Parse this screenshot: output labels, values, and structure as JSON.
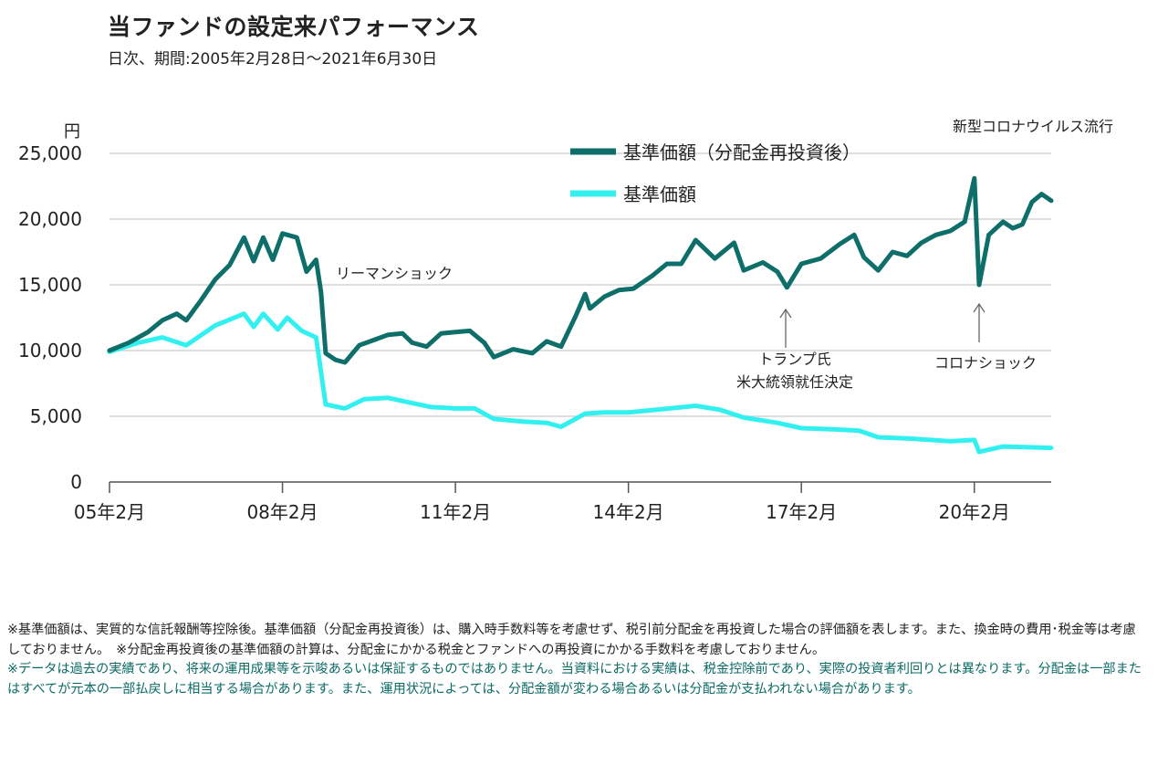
{
  "header": {
    "title": "当ファンドの設定来パフォーマンス",
    "subtitle": "日次、期間:2005年2月28日～2021年6月30日"
  },
  "chart_data": {
    "type": "line",
    "ylabel": "円",
    "ylim": [
      0,
      25000
    ],
    "yticks": [
      0,
      5000,
      10000,
      15000,
      20000,
      25000
    ],
    "ytick_labels": [
      "0",
      "5,000",
      "10,000",
      "15,000",
      "20,000",
      "25,000"
    ],
    "xlim": [
      "2005-02",
      "2021-06"
    ],
    "xticks": [
      "2005-02",
      "2008-02",
      "2011-02",
      "2014-02",
      "2017-02",
      "2020-02"
    ],
    "xtick_labels": [
      "05年2月",
      "08年2月",
      "11年2月",
      "14年2月",
      "17年2月",
      "20年2月"
    ],
    "grid": "horizontal",
    "legend_position": "top-right",
    "series": [
      {
        "name": "基準価額（分配金再投資後）",
        "color": "#0e6e6a",
        "points": [
          [
            "2005-02",
            10000
          ],
          [
            "2005-06",
            10600
          ],
          [
            "2005-10",
            11400
          ],
          [
            "2006-01",
            12300
          ],
          [
            "2006-04",
            12800
          ],
          [
            "2006-06",
            12300
          ],
          [
            "2006-09",
            13800
          ],
          [
            "2006-12",
            15400
          ],
          [
            "2007-03",
            16500
          ],
          [
            "2007-06",
            18600
          ],
          [
            "2007-08",
            16800
          ],
          [
            "2007-10",
            18600
          ],
          [
            "2007-12",
            16900
          ],
          [
            "2008-02",
            18900
          ],
          [
            "2008-05",
            18600
          ],
          [
            "2008-07",
            16000
          ],
          [
            "2008-09",
            16900
          ],
          [
            "2008-10",
            14500
          ],
          [
            "2008-11",
            9800
          ],
          [
            "2009-01",
            9300
          ],
          [
            "2009-03",
            9100
          ],
          [
            "2009-06",
            10400
          ],
          [
            "2009-09",
            10800
          ],
          [
            "2009-12",
            11200
          ],
          [
            "2010-03",
            11300
          ],
          [
            "2010-05",
            10600
          ],
          [
            "2010-08",
            10300
          ],
          [
            "2010-11",
            11300
          ],
          [
            "2011-02",
            11400
          ],
          [
            "2011-05",
            11500
          ],
          [
            "2011-08",
            10600
          ],
          [
            "2011-10",
            9500
          ],
          [
            "2012-02",
            10100
          ],
          [
            "2012-06",
            9800
          ],
          [
            "2012-09",
            10700
          ],
          [
            "2012-12",
            10300
          ],
          [
            "2013-03",
            12600
          ],
          [
            "2013-05",
            14300
          ],
          [
            "2013-06",
            13200
          ],
          [
            "2013-09",
            14100
          ],
          [
            "2013-12",
            14600
          ],
          [
            "2014-03",
            14700
          ],
          [
            "2014-07",
            15700
          ],
          [
            "2014-10",
            16600
          ],
          [
            "2015-01",
            16600
          ],
          [
            "2015-04",
            18400
          ],
          [
            "2015-08",
            17000
          ],
          [
            "2015-12",
            18200
          ],
          [
            "2016-02",
            16100
          ],
          [
            "2016-06",
            16700
          ],
          [
            "2016-09",
            16000
          ],
          [
            "2016-11",
            14800
          ],
          [
            "2017-02",
            16600
          ],
          [
            "2017-06",
            17000
          ],
          [
            "2017-10",
            18100
          ],
          [
            "2018-01",
            18800
          ],
          [
            "2018-03",
            17100
          ],
          [
            "2018-06",
            16100
          ],
          [
            "2018-09",
            17500
          ],
          [
            "2018-12",
            17200
          ],
          [
            "2019-03",
            18200
          ],
          [
            "2019-06",
            18800
          ],
          [
            "2019-09",
            19100
          ],
          [
            "2019-12",
            19800
          ],
          [
            "2020-02",
            23100
          ],
          [
            "2020-03",
            15000
          ],
          [
            "2020-05",
            18800
          ],
          [
            "2020-08",
            19800
          ],
          [
            "2020-10",
            19300
          ],
          [
            "2020-12",
            19600
          ],
          [
            "2021-02",
            21300
          ],
          [
            "2021-04",
            21900
          ],
          [
            "2021-06",
            21400
          ]
        ]
      },
      {
        "name": "基準価額",
        "color": "#33f0f0",
        "points": [
          [
            "2005-02",
            9900
          ],
          [
            "2005-08",
            10600
          ],
          [
            "2006-01",
            11000
          ],
          [
            "2006-06",
            10400
          ],
          [
            "2006-12",
            11900
          ],
          [
            "2007-06",
            12800
          ],
          [
            "2007-08",
            11800
          ],
          [
            "2007-10",
            12800
          ],
          [
            "2008-01",
            11600
          ],
          [
            "2008-03",
            12500
          ],
          [
            "2008-06",
            11500
          ],
          [
            "2008-09",
            11000
          ],
          [
            "2008-11",
            5900
          ],
          [
            "2009-03",
            5600
          ],
          [
            "2009-07",
            6300
          ],
          [
            "2009-12",
            6400
          ],
          [
            "2010-05",
            6000
          ],
          [
            "2010-09",
            5700
          ],
          [
            "2011-02",
            5600
          ],
          [
            "2011-06",
            5600
          ],
          [
            "2011-10",
            4800
          ],
          [
            "2012-04",
            4600
          ],
          [
            "2012-09",
            4500
          ],
          [
            "2012-12",
            4200
          ],
          [
            "2013-05",
            5200
          ],
          [
            "2013-09",
            5300
          ],
          [
            "2014-02",
            5300
          ],
          [
            "2014-08",
            5500
          ],
          [
            "2015-04",
            5800
          ],
          [
            "2015-09",
            5500
          ],
          [
            "2016-02",
            4900
          ],
          [
            "2016-09",
            4500
          ],
          [
            "2017-02",
            4100
          ],
          [
            "2017-09",
            4000
          ],
          [
            "2018-02",
            3900
          ],
          [
            "2018-06",
            3400
          ],
          [
            "2019-01",
            3300
          ],
          [
            "2019-09",
            3100
          ],
          [
            "2020-02",
            3200
          ],
          [
            "2020-03",
            2300
          ],
          [
            "2020-08",
            2700
          ],
          [
            "2021-06",
            2600
          ]
        ]
      }
    ],
    "annotations": [
      {
        "text": "リーマンショック",
        "arrow": false
      },
      {
        "text": "トランプ氏 米大統領就任決定",
        "lines": [
          "トランプ氏",
          "米大統領就任決定"
        ],
        "arrow": true
      },
      {
        "text": "コロナショック",
        "arrow": true
      },
      {
        "text": "新型コロナウイルス流行",
        "arrow": false
      }
    ]
  },
  "notes": {
    "line1": "※基準価額は、実質的な信託報酬等控除後。基準価額（分配金再投資後）は、購入時手数料等を考慮せず、税引前分配金を再投資した場合の評価額を表します。また、換金時の費用･税金等は考慮しておりません。　※分配金再投資後の基準価額の計算は、分配金にかかる税金とファンドへの再投資にかかる手数料を考慮しておりません。",
    "line2": "※データは過去の実績であり、将来の運用成果等を示唆あるいは保証するものではありません。当資料における実績は、税金控除前であり、実際の投資者利回りとは異なります。分配金は一部またはすべてが元本の一部払戻しに相当する場合があります。また、運用状況によっては、分配金額が変わる場合あるいは分配金が支払われない場合があります。"
  }
}
